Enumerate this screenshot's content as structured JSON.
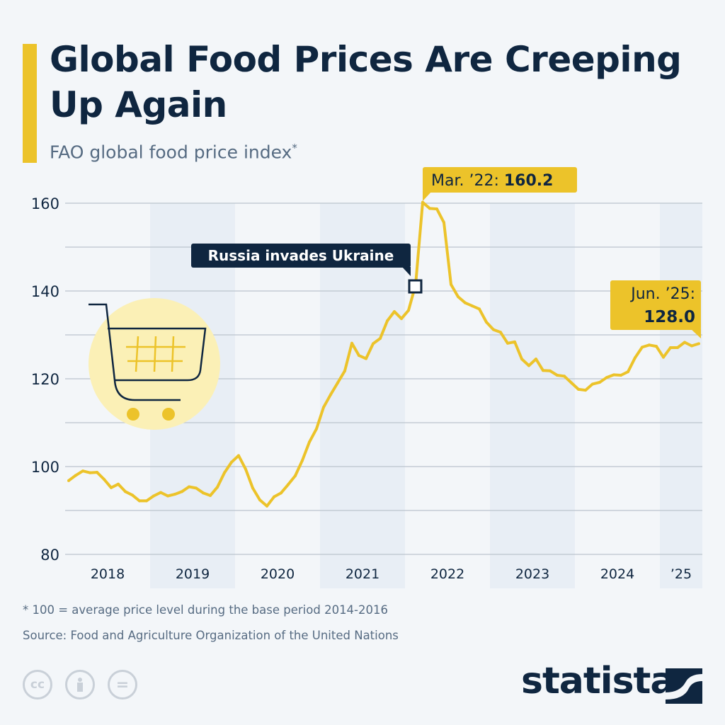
{
  "header": {
    "title": "Global Food Prices Are Creeping Up Again",
    "subtitle": "FAO global food price index",
    "subtitle_mark": "*"
  },
  "chart_data": {
    "type": "line",
    "title": "Global Food Prices Are Creeping Up Again",
    "subtitle": "FAO global food price index*",
    "ylim": [
      80,
      160
    ],
    "y_ticks": [
      160,
      140,
      120,
      100,
      80
    ],
    "y_tick_labels": [
      "160",
      "140",
      "120",
      "100",
      "80"
    ],
    "gridlines_every": 10,
    "grid": true,
    "x_tick_labels": [
      "2018",
      "2019",
      "2020",
      "2021",
      "2022",
      "2023",
      "2024",
      "’25"
    ],
    "x_start": "2018-01",
    "x_end": "2025-06",
    "frequency": "monthly",
    "series": [
      {
        "color": "#ecc32a",
        "values": [
          96.8,
          98.0,
          99.0,
          98.6,
          98.7,
          97.1,
          95.2,
          96.0,
          94.3,
          93.5,
          92.2,
          92.2,
          93.3,
          94.1,
          93.3,
          93.7,
          94.3,
          95.4,
          95.1,
          94.0,
          93.4,
          95.3,
          98.6,
          101.0,
          102.5,
          99.4,
          95.1,
          92.4,
          91.0,
          93.1,
          94.0,
          95.9,
          97.9,
          101.4,
          105.6,
          108.6,
          113.5,
          116.4,
          119.1,
          121.8,
          128.1,
          125.3,
          124.6,
          128.0,
          129.2,
          133.2,
          135.3,
          133.7,
          135.6,
          141.4,
          160.2,
          158.8,
          158.7,
          155.6,
          141.5,
          138.7,
          137.3,
          136.6,
          135.9,
          132.9,
          131.2,
          130.6,
          128.1,
          128.4,
          124.5,
          123.0,
          124.5,
          121.9,
          121.8,
          120.8,
          120.6,
          119.1,
          117.6,
          117.4,
          118.8,
          119.2,
          120.3,
          120.9,
          120.8,
          121.6,
          124.8,
          127.2,
          127.7,
          127.4,
          124.9,
          127.1,
          127.1,
          128.3,
          127.5,
          128.0
        ]
      }
    ],
    "annotations": {
      "peak": {
        "label": "Mar. ’22:",
        "value": "160.2"
      },
      "latest": {
        "label": "Jun. ’25:",
        "value": "128.0"
      },
      "event": {
        "label": "Russia invades Ukraine",
        "month": "2022-02"
      }
    }
  },
  "footer": {
    "note": "* 100 = average price level during the base period 2014-2016",
    "source": "Source: Food and Agriculture Organization of the United Nations",
    "license_icons": [
      "cc-icon",
      "attribution-icon",
      "no-derivatives-icon"
    ],
    "cc_text": "cc",
    "nd_text": "=",
    "brand": "statista"
  },
  "colors": {
    "accent": "#ecc32a",
    "navy": "#0f2640",
    "band": "#e8eef5",
    "background": "#f3f6f9"
  }
}
